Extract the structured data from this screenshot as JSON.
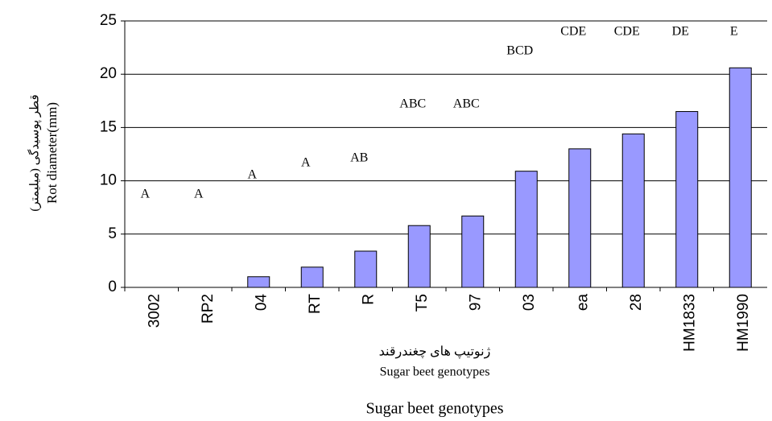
{
  "chart_data": {
    "type": "bar",
    "categories": [
      "3002",
      "RP2",
      "04",
      "RT",
      "R",
      "T5",
      "97",
      "03",
      "ea",
      "28",
      "HM1833",
      "HM1990"
    ],
    "values": [
      0,
      0,
      1,
      1.9,
      3.4,
      5.8,
      6.7,
      10.9,
      13,
      14.4,
      16.5,
      20.6
    ],
    "annotations": [
      "A",
      "A",
      "A",
      "A",
      "AB",
      "ABC",
      "ABC",
      "BCD",
      "CDE",
      "CDE",
      "DE",
      "E"
    ],
    "color": "#9999ff",
    "ylim": [
      0,
      25
    ],
    "yticks": [
      0,
      5,
      10,
      15,
      20,
      25
    ],
    "grid": true,
    "y_label": [
      "قطر پوسیدگی (میلیمتر)",
      "Rot diameter(mm)"
    ],
    "x_label": [
      "ژنوتیپ های چغندرقند",
      "Sugar beet genotypes"
    ],
    "x_title": "Sugar beet genotypes"
  }
}
